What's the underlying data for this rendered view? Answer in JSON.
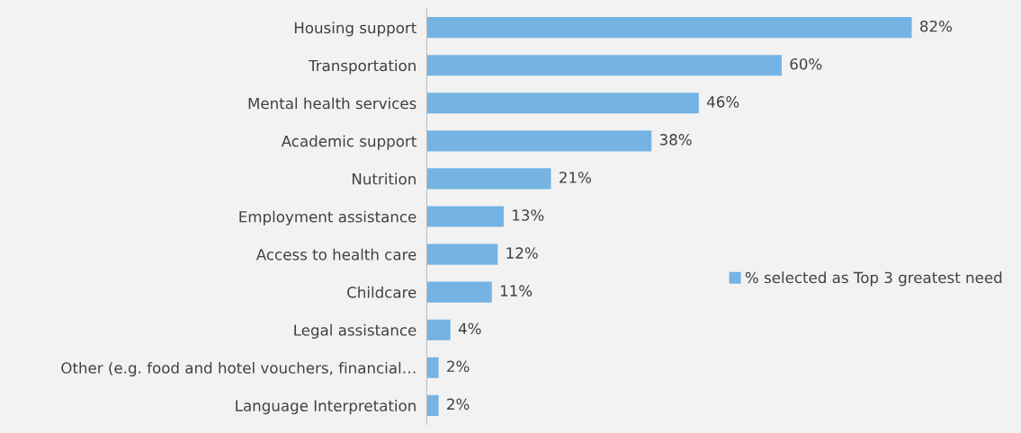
{
  "chart_data": {
    "type": "bar",
    "orientation": "horizontal",
    "categories": [
      "Housing support",
      "Transportation",
      "Mental health services",
      "Academic support",
      "Nutrition",
      "Employment assistance",
      "Access to health care",
      "Childcare",
      "Legal assistance",
      "Other (e.g. food and hotel vouchers, financial…",
      "Language Interpretation"
    ],
    "series": [
      {
        "name": "% selected as Top 3 greatest need",
        "color": "#74b3e3",
        "values": [
          82,
          60,
          46,
          38,
          21,
          13,
          12,
          11,
          4,
          2,
          2
        ],
        "value_labels": [
          "82%",
          "60%",
          "46%",
          "38%",
          "21%",
          "13%",
          "12%",
          "11%",
          "4%",
          "2%",
          "2%"
        ]
      }
    ],
    "legend": "right",
    "grid": false,
    "tick_labels": "y"
  }
}
